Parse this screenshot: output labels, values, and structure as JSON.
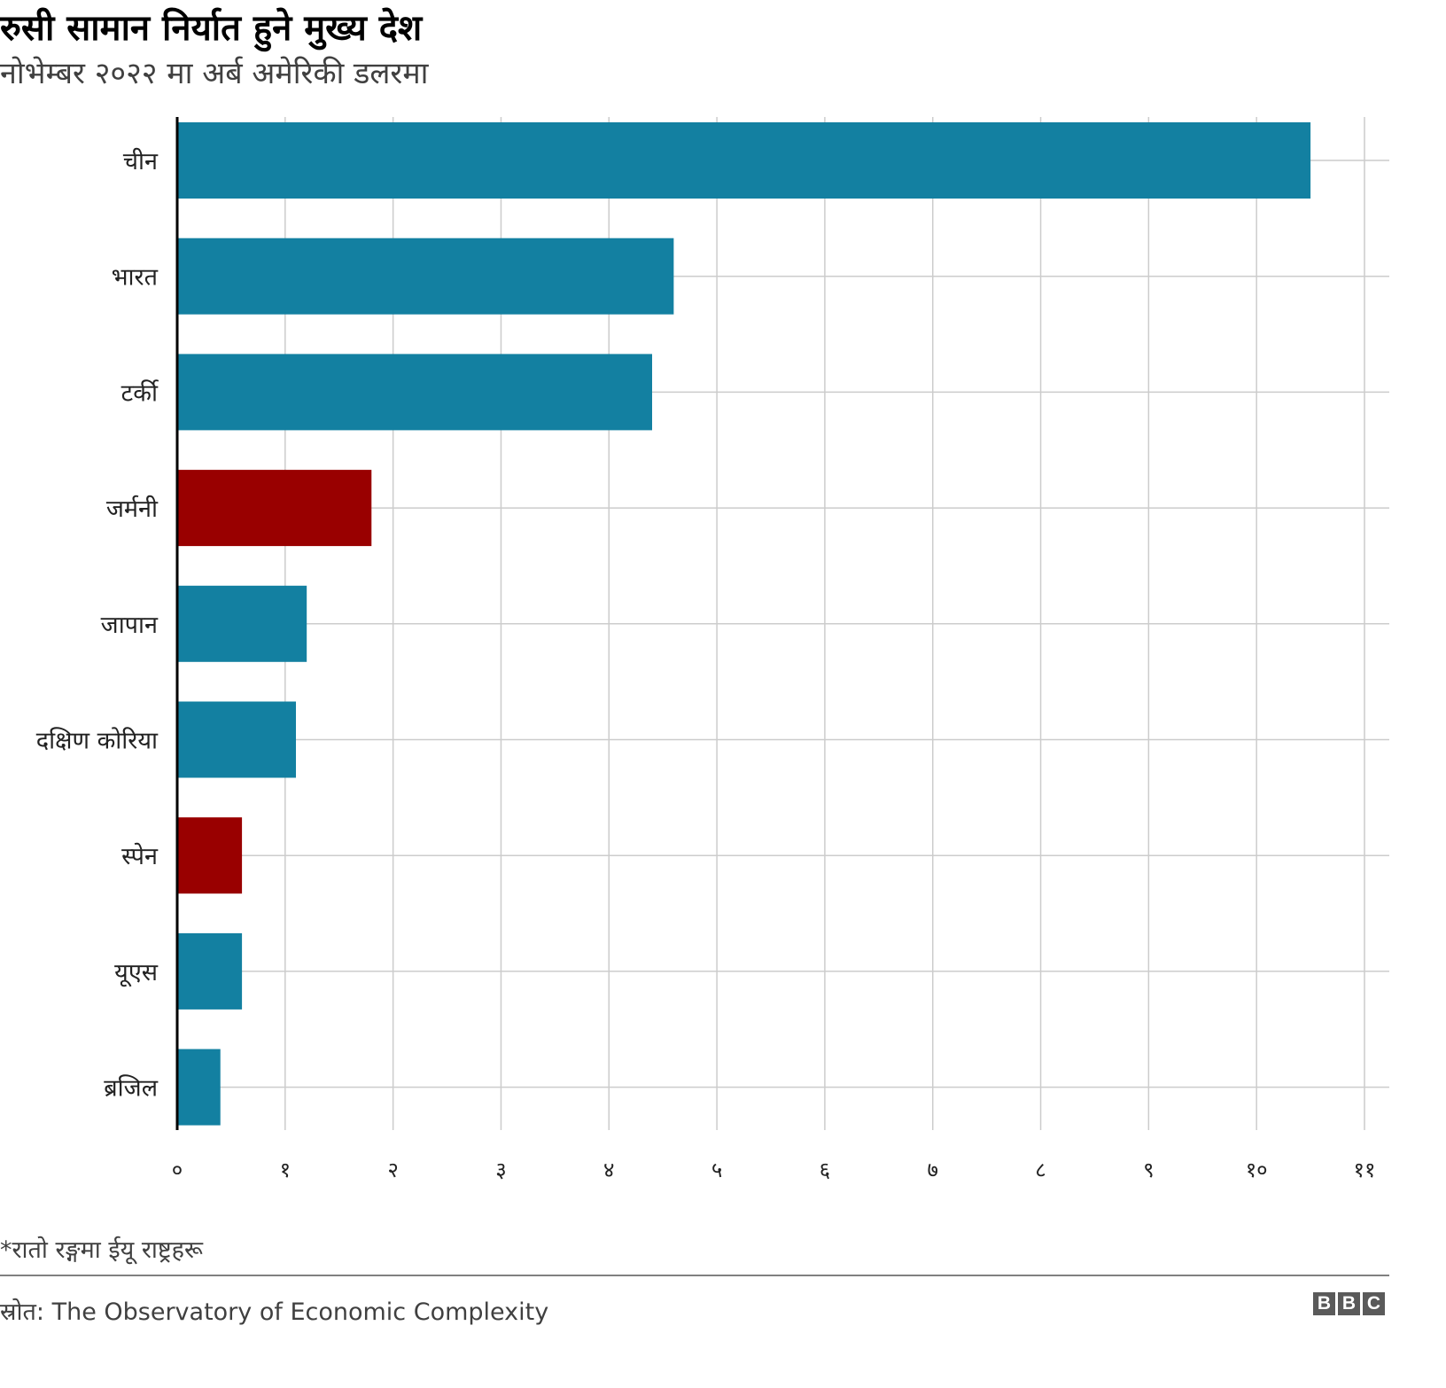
{
  "chart_data": {
    "type": "bar",
    "orientation": "horizontal",
    "title": "रुसी सामान निर्यात हुने मुख्य देश",
    "subtitle": "नोभेम्बर २०२२ मा अर्ब अमेरिकी डलरमा",
    "categories": [
      "चीन",
      "भारत",
      "टर्की",
      "जर्मनी",
      "जापान",
      "दक्षिण कोरिया",
      "स्पेन",
      "यूएस",
      "ब्रजिल"
    ],
    "values": [
      10.5,
      4.6,
      4.4,
      1.8,
      1.2,
      1.1,
      0.6,
      0.6,
      0.4
    ],
    "eu_member": [
      false,
      false,
      false,
      true,
      false,
      false,
      true,
      false,
      false
    ],
    "xlim": [
      0,
      11
    ],
    "x_ticks": [
      0,
      1,
      2,
      3,
      4,
      5,
      6,
      7,
      8,
      9,
      10,
      11
    ],
    "x_tick_labels": [
      "०",
      "१",
      "२",
      "३",
      "४",
      "५",
      "६",
      "७",
      "८",
      "९",
      "१०",
      "११"
    ],
    "grid": true,
    "colors": {
      "default": "#1380a1",
      "eu": "#990000"
    },
    "xlabel": "",
    "ylabel": ""
  },
  "note": "*रातो रङ्गमा ईयू राष्ट्रहरू",
  "source": "स्रोत: The Observatory of Economic Complexity",
  "logo": [
    "B",
    "B",
    "C"
  ]
}
